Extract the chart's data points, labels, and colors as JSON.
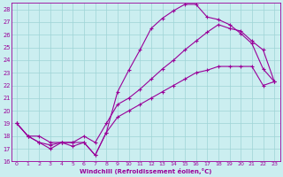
{
  "xlabel": "Windchill (Refroidissement éolien,°C)",
  "xlim": [
    -0.5,
    23.5
  ],
  "ylim": [
    16,
    28.5
  ],
  "xticks": [
    0,
    1,
    2,
    3,
    4,
    5,
    6,
    7,
    8,
    9,
    10,
    11,
    12,
    13,
    14,
    15,
    16,
    17,
    18,
    19,
    20,
    21,
    22,
    23
  ],
  "yticks": [
    16,
    17,
    18,
    19,
    20,
    21,
    22,
    23,
    24,
    25,
    26,
    27,
    28
  ],
  "bg_color": "#cbeef0",
  "grid_color": "#9ed4d6",
  "line_color": "#990099",
  "line1_x": [
    0,
    1,
    2,
    3,
    4,
    5,
    6,
    7,
    8,
    9,
    10,
    11,
    12,
    13,
    14,
    15,
    16,
    17,
    18,
    19,
    20,
    21,
    22,
    23
  ],
  "line1_y": [
    19,
    18,
    17.5,
    17,
    17.5,
    17.2,
    17.5,
    16.5,
    18.3,
    21.5,
    23.2,
    24.8,
    26.5,
    27.3,
    27.9,
    28.4,
    28.4,
    27.4,
    27.2,
    26.8,
    26.1,
    25.3,
    23.3,
    22.3
  ],
  "line2_x": [
    0,
    1,
    2,
    3,
    4,
    5,
    6,
    7,
    8,
    9,
    10,
    11,
    12,
    13,
    14,
    15,
    16,
    17,
    18,
    19,
    20,
    21,
    22,
    23
  ],
  "line2_y": [
    19,
    18,
    18,
    17.5,
    17.5,
    17.5,
    18,
    17.5,
    19,
    20.5,
    21.0,
    21.7,
    22.5,
    23.3,
    24.0,
    24.8,
    25.5,
    26.2,
    26.8,
    26.5,
    26.3,
    25.5,
    24.8,
    22.3
  ],
  "line3_x": [
    0,
    1,
    2,
    3,
    4,
    5,
    6,
    7,
    8,
    9,
    10,
    11,
    12,
    13,
    14,
    15,
    16,
    17,
    18,
    19,
    20,
    21,
    22,
    23
  ],
  "line3_y": [
    19,
    18,
    17.5,
    17.3,
    17.5,
    17.5,
    17.5,
    16.5,
    18.3,
    19.5,
    20.0,
    20.5,
    21.0,
    21.5,
    22.0,
    22.5,
    23.0,
    23.2,
    23.5,
    23.5,
    23.5,
    23.5,
    22.0,
    22.3
  ]
}
